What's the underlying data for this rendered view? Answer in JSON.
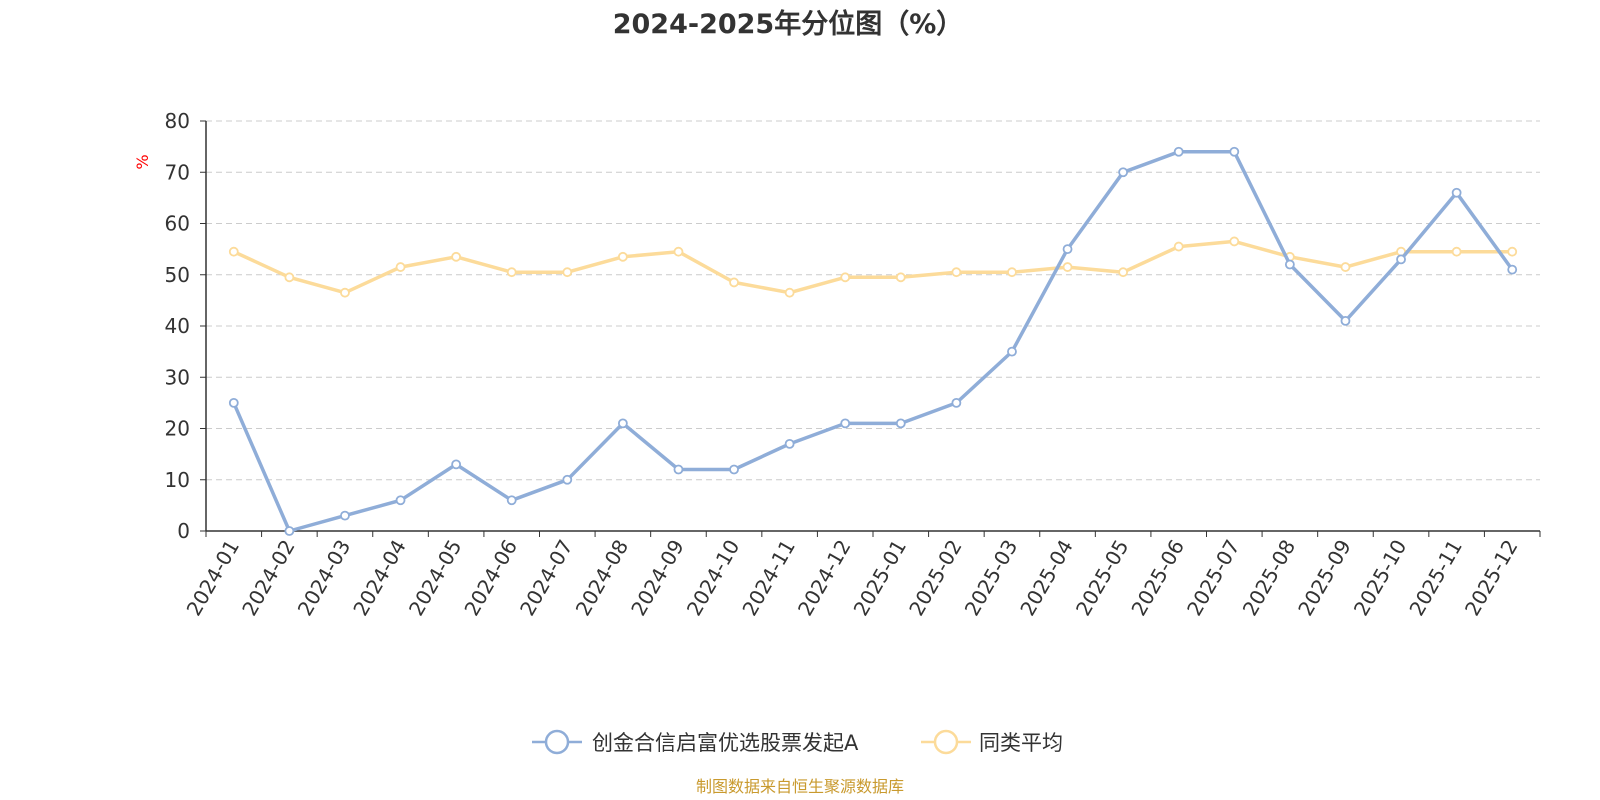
{
  "chart_data": {
    "type": "line",
    "title": "2024-2025年分位图（%）",
    "ylabel": "%",
    "xlabel": "",
    "ylim": [
      0,
      80
    ],
    "yticks": [
      0,
      10,
      20,
      30,
      40,
      50,
      60,
      70,
      80
    ],
    "grid": true,
    "legend_position": "bottom-center",
    "categories": [
      "2024-01",
      "2024-02",
      "2024-03",
      "2024-04",
      "2024-05",
      "2024-06",
      "2024-07",
      "2024-08",
      "2024-09",
      "2024-10",
      "2024-11",
      "2024-12",
      "2025-01",
      "2025-02",
      "2025-03",
      "2025-04",
      "2025-05",
      "2025-06",
      "2025-07",
      "2025-08",
      "2025-09",
      "2025-10",
      "2025-11",
      "2025-12"
    ],
    "series": [
      {
        "name": "创金合信启富优选股票发起A",
        "color": "#8fadd8",
        "values": [
          25,
          0,
          3,
          6,
          13,
          6,
          10,
          21,
          12,
          12,
          17,
          21,
          21,
          25,
          35,
          55,
          70,
          74,
          74,
          52,
          41,
          53,
          66,
          51
        ]
      },
      {
        "name": "同类平均",
        "color": "#fcdb9a",
        "values": [
          54.5,
          49.5,
          46.5,
          51.5,
          53.5,
          50.5,
          50.5,
          53.5,
          54.5,
          48.5,
          46.5,
          49.5,
          49.5,
          50.5,
          50.5,
          51.5,
          50.5,
          55.5,
          56.5,
          53.5,
          51.5,
          54.5,
          54.5,
          54.5
        ]
      }
    ]
  },
  "colors": {
    "axis": "#333333",
    "grid": "#cccccc",
    "y_unit": "#ff0000",
    "source": "#c99a2e"
  },
  "source_text": "制图数据来自恒生聚源数据库"
}
